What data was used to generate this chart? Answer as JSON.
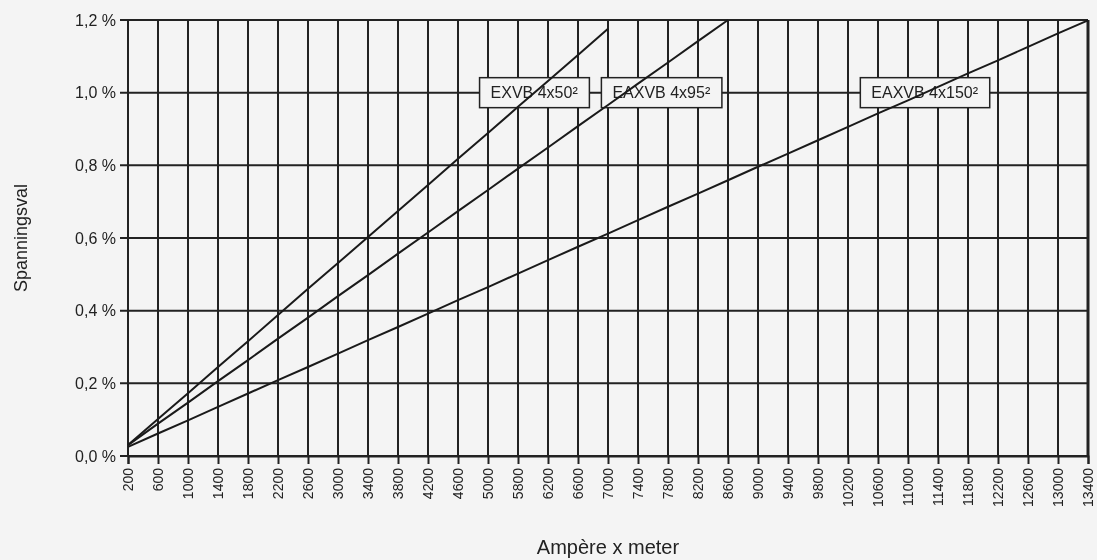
{
  "chart_data": {
    "type": "line",
    "xlabel": "Ampère x meter",
    "ylabel": "Spanningsval",
    "categories": [
      "200",
      "600",
      "1000",
      "1400",
      "1800",
      "2200",
      "2600",
      "3000",
      "3400",
      "3800",
      "4200",
      "4600",
      "5000",
      "5800",
      "6200",
      "6600",
      "7000",
      "7400",
      "7800",
      "8200",
      "8600",
      "9000",
      "9400",
      "9800",
      "10200",
      "10600",
      "11000",
      "11400",
      "11800",
      "12200",
      "12600",
      "13000",
      "13400"
    ],
    "series": [
      {
        "name": "EXVB 4x50²",
        "color": "#1a1a1a",
        "values": [
          0.03,
          0.102,
          0.173,
          0.245,
          0.316,
          0.388,
          0.46,
          0.531,
          0.603,
          0.674,
          0.746,
          0.818,
          0.889,
          0.961,
          1.032,
          1.104,
          1.176,
          null,
          null,
          null,
          null,
          null,
          null,
          null,
          null,
          null,
          null,
          null,
          null,
          null,
          null,
          null,
          null
        ]
      },
      {
        "name": "EAXVB 4x95²",
        "color": "#1a1a1a",
        "values": [
          0.03,
          0.089,
          0.147,
          0.206,
          0.264,
          0.323,
          0.381,
          0.44,
          0.498,
          0.557,
          0.615,
          0.674,
          0.732,
          0.791,
          0.849,
          0.908,
          0.966,
          1.025,
          1.083,
          1.142,
          1.2,
          null,
          null,
          null,
          null,
          null,
          null,
          null,
          null,
          null,
          null,
          null,
          null
        ]
      },
      {
        "name": "EAXVB 4x150²",
        "color": "#1a1a1a",
        "values": [
          0.025,
          0.062,
          0.098,
          0.135,
          0.172,
          0.209,
          0.245,
          0.282,
          0.319,
          0.355,
          0.392,
          0.429,
          0.465,
          0.502,
          0.539,
          0.576,
          0.612,
          0.649,
          0.686,
          0.722,
          0.759,
          0.796,
          0.832,
          0.869,
          0.906,
          0.943,
          0.979,
          1.016,
          1.053,
          1.089,
          1.126,
          1.163,
          1.199
        ]
      }
    ],
    "ylim": [
      0,
      1.2
    ],
    "yticks": [
      {
        "value": 0,
        "label": "0,0 %"
      },
      {
        "value": 0.2,
        "label": "0,2 %"
      },
      {
        "value": 0.4,
        "label": "0,4 %"
      },
      {
        "value": 0.6,
        "label": "0,6 %"
      },
      {
        "value": 0.8,
        "label": "0,8 %"
      },
      {
        "value": 1.0,
        "label": "1,0 %"
      },
      {
        "value": 1.2,
        "label": "1,2 %"
      }
    ],
    "grid": true,
    "legend": false,
    "marker": "none",
    "line_style": "solid"
  }
}
